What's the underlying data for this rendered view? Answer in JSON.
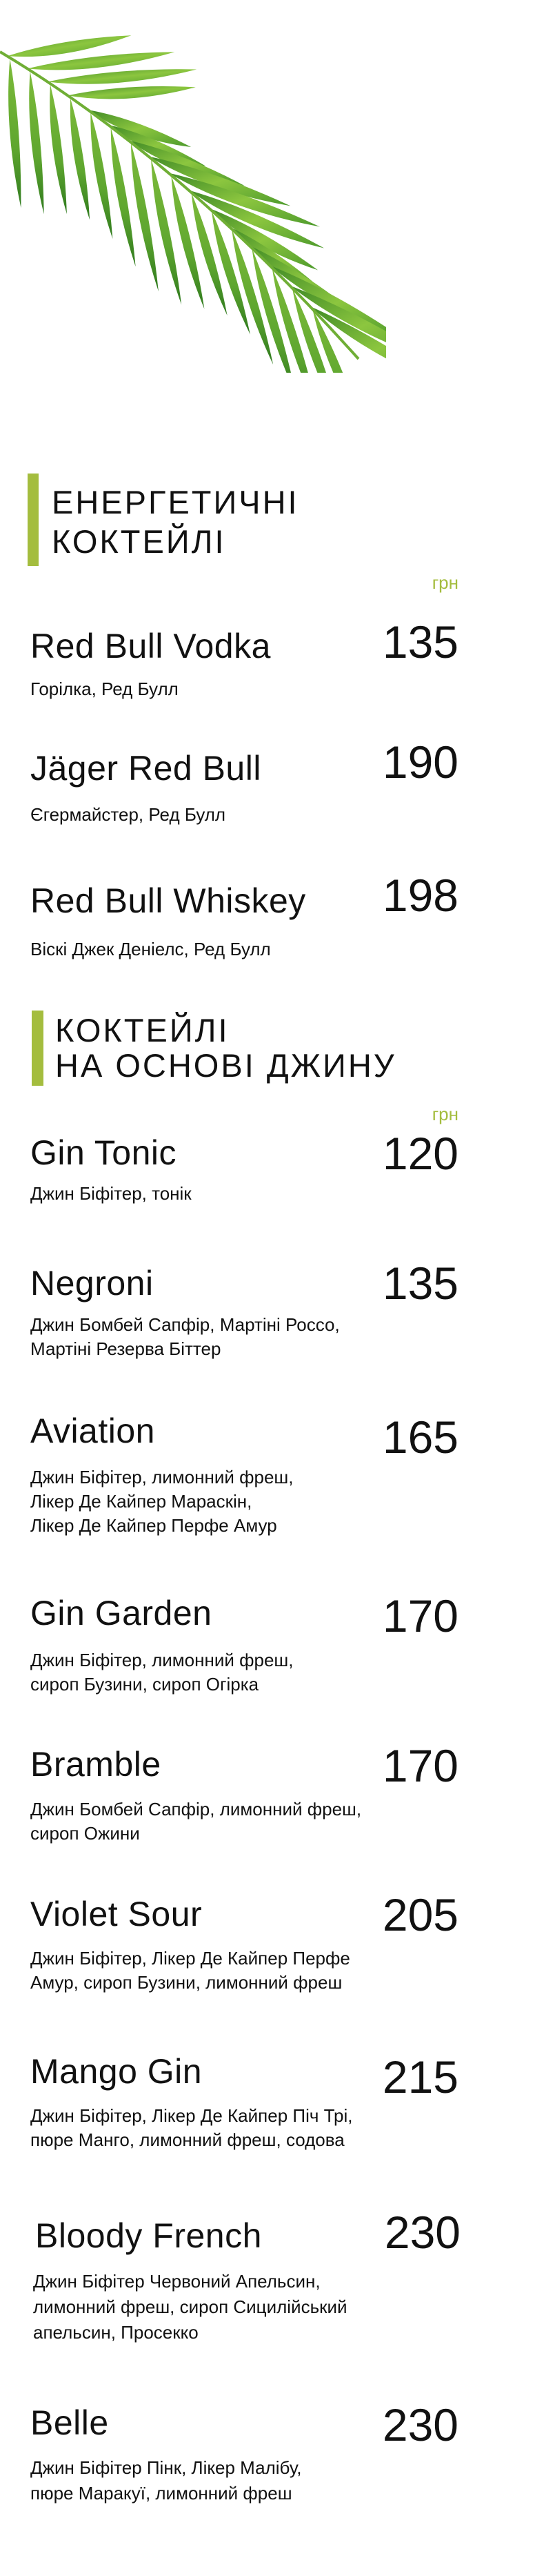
{
  "decoration": {
    "icon": "palm-leaf-icon",
    "color": "#5fa62e"
  },
  "accent_color": "#a4bd3e",
  "sections": [
    {
      "title_lines": [
        "ЕНЕРГЕТИЧНІ",
        "КОКТЕЙЛІ"
      ],
      "currency": "грн",
      "items": [
        {
          "name": "Red Bull Vodka",
          "price": "135",
          "desc": [
            "Горілка, Ред Булл"
          ]
        },
        {
          "name": "Jäger Red Bull",
          "price": "190",
          "desc": [
            "Єгермайстер, Ред Булл"
          ]
        },
        {
          "name": "Red Bull Whiskey",
          "price": "198",
          "desc": [
            "Віскі Джек Деніелс, Ред Булл"
          ]
        }
      ]
    },
    {
      "title_lines": [
        "КОКТЕЙЛІ",
        "НА ОСНОВІ ДЖИНУ"
      ],
      "currency": "грн",
      "items": [
        {
          "name": "Gin Tonic",
          "price": "120",
          "desc": [
            "Джин Біфітер, тонік"
          ]
        },
        {
          "name": "Negroni",
          "price": "135",
          "desc": [
            "Джин Бомбей Сапфір, Мартіні Россо,",
            "Мартіні Резерва Біттер"
          ]
        },
        {
          "name": "Aviation",
          "price": "165",
          "desc": [
            "Джин Біфітер, лимонний фреш,",
            "Лікер Де Кайпер Мараскін,",
            "Лікер Де Кайпер Перфе Амур"
          ]
        },
        {
          "name": "Gin Garden",
          "price": "170",
          "desc": [
            "Джин Біфітер, лимонний фреш,",
            "сироп Бузини, сироп Огірка"
          ]
        },
        {
          "name": "Bramble",
          "price": "170",
          "desc": [
            "Джин Бомбей Сапфір, лимонний фреш,",
            "сироп Ожини"
          ]
        },
        {
          "name": "Violet Sour",
          "price": "205",
          "desc": [
            "Джин Біфітер, Лікер Де Кайпер Перфе",
            "Амур, сироп Бузини, лимонний фреш"
          ]
        },
        {
          "name": "Mango Gin",
          "price": "215",
          "desc": [
            "Джин Біфітер, Лікер Де Кайпер Піч Трі,",
            "пюре Манго, лимонний фреш, содова"
          ]
        },
        {
          "name": "Bloody French",
          "price": "230",
          "desc": [
            "Джин Біфітер Червоний Апельсин,",
            "лимонний фреш, сироп Сицилійський",
            "апельсин, Просекко"
          ]
        },
        {
          "name": "Belle",
          "price": "230",
          "desc": [
            "Джин Біфітер Пінк, Лікер Малібу,",
            "пюре Маракуї, лимонний фреш"
          ]
        }
      ]
    }
  ]
}
